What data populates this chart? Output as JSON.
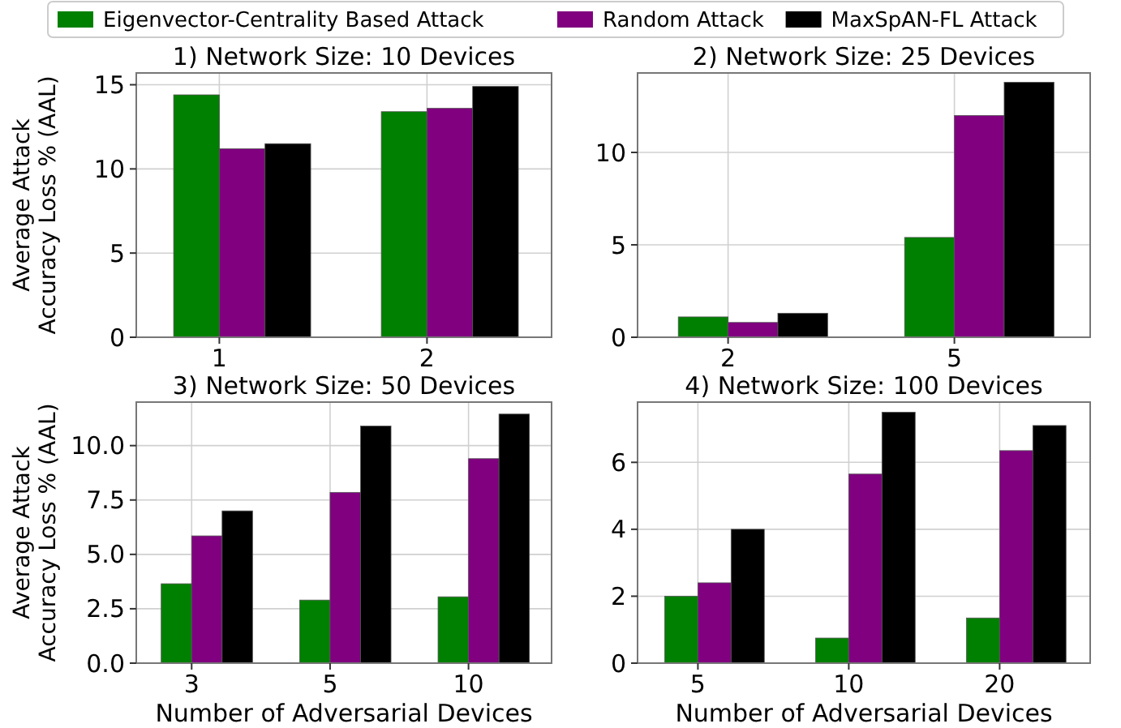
{
  "chart_data": [
    {
      "type": "bar",
      "title": "1) Network Size: 10 Devices",
      "ylabel": "Average Attack\nAccuracy Loss % (AAL)",
      "categories": [
        "1",
        "2"
      ],
      "legend": "top",
      "grid": true,
      "ylim": [
        0,
        15.7
      ],
      "yticks": [
        0,
        5,
        10,
        15
      ],
      "series": [
        {
          "name": "Eigenvector-Centrality Based Attack",
          "color": "#008000",
          "values": [
            14.4,
            13.4
          ]
        },
        {
          "name": "Random Attack",
          "color": "#800080",
          "values": [
            11.2,
            13.6
          ]
        },
        {
          "name": "MaxSpAN-FL Attack",
          "color": "#000000",
          "values": [
            11.5,
            14.9
          ]
        }
      ]
    },
    {
      "type": "bar",
      "title": "2) Network Size: 25 Devices",
      "categories": [
        "2",
        "5"
      ],
      "grid": true,
      "ylim": [
        0,
        14.3
      ],
      "yticks": [
        0,
        5,
        10
      ],
      "series": [
        {
          "color": "#008000",
          "values": [
            1.1,
            5.4
          ]
        },
        {
          "color": "#800080",
          "values": [
            0.8,
            12.0
          ]
        },
        {
          "color": "#000000",
          "values": [
            1.3,
            13.8
          ]
        }
      ]
    },
    {
      "type": "bar",
      "title": "3) Network Size: 50 Devices",
      "ylabel": "Average Attack\nAccuracy Loss % (AAL)",
      "xlabel": "Number of Adversarial Devices",
      "categories": [
        "3",
        "5",
        "10"
      ],
      "grid": true,
      "ylim": [
        0,
        12
      ],
      "yticks": [
        {
          "value": 0,
          "label": "0.0"
        },
        {
          "value": 2.5,
          "label": "2.5"
        },
        {
          "value": 5,
          "label": "5.0"
        },
        {
          "value": 7.5,
          "label": "7.5"
        },
        {
          "value": 10,
          "label": "10.0"
        }
      ],
      "series": [
        {
          "color": "#008000",
          "values": [
            3.65,
            2.9,
            3.05
          ]
        },
        {
          "color": "#800080",
          "values": [
            5.85,
            7.85,
            9.4
          ]
        },
        {
          "color": "#000000",
          "values": [
            7.0,
            10.9,
            11.45
          ]
        }
      ]
    },
    {
      "type": "bar",
      "title": "4) Network Size: 100 Devices",
      "xlabel": "Number of Adversarial Devices",
      "categories": [
        "5",
        "10",
        "20"
      ],
      "grid": true,
      "ylim": [
        0,
        7.8
      ],
      "yticks": [
        0,
        2,
        4,
        6
      ],
      "series": [
        {
          "color": "#008000",
          "values": [
            2.0,
            0.75,
            1.35
          ]
        },
        {
          "color": "#800080",
          "values": [
            2.4,
            5.65,
            6.35
          ]
        },
        {
          "color": "#000000",
          "values": [
            4.0,
            7.5,
            7.1
          ]
        }
      ]
    }
  ]
}
